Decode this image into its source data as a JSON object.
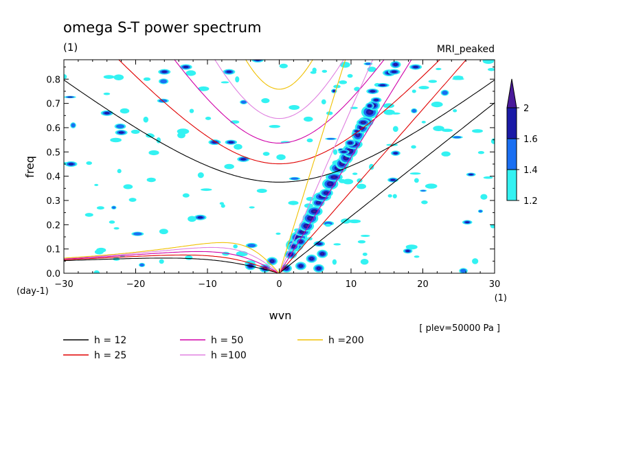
{
  "chart_data": {
    "type": "line",
    "title": "omega S-T power spectrum",
    "subtitle_left": "(1)",
    "subtitle_right": "MRI_peaked",
    "xlabel": "wvn",
    "ylabel": "freq",
    "x_unit_label": "(1)",
    "y_unit_label": "(day-1)",
    "footnote": "[ plev=50000 Pa ]",
    "xlim": [
      -30,
      30
    ],
    "ylim": [
      0,
      0.88
    ],
    "x_ticks": [
      -30,
      -20,
      -10,
      0,
      10,
      20,
      30
    ],
    "y_ticks": [
      0.0,
      0.1,
      0.2,
      0.3,
      0.4,
      0.5,
      0.6,
      0.7,
      0.8
    ],
    "colorbar": {
      "levels": [
        "1.2",
        "1.4",
        "1.6",
        "2"
      ],
      "colors": [
        "#33f2f2",
        "#1a6ff2",
        "#1a1aa6",
        "#4a1a9a"
      ]
    },
    "series": [
      {
        "name": "h = 12",
        "color": "#000000"
      },
      {
        "name": "h = 25",
        "color": "#e00000"
      },
      {
        "name": "h = 50",
        "color": "#d000a8"
      },
      {
        "name": "h =100",
        "color": "#e080e0"
      },
      {
        "name": "h =200",
        "color": "#f0c000"
      }
    ],
    "grid": false,
    "legend_placement": "bottom-left"
  }
}
